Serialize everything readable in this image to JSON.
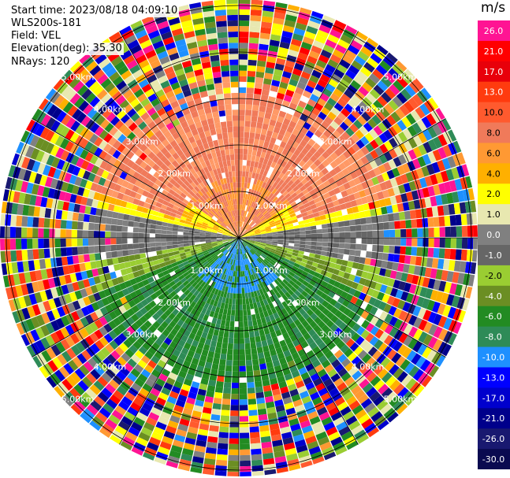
{
  "header": {
    "start_time": "Start time: 2023/08/18 04:09:10",
    "site": "WLS200s-181",
    "field": "Field: VEL",
    "elevation": "Elevation(deg): 35.30",
    "nrays": "NRays: 120"
  },
  "range_rings": {
    "labels": [
      "1.00km",
      "2.00km",
      "3.00km",
      "4.00km",
      "5.00km",
      "6.00km"
    ]
  },
  "colorbar": {
    "unit": "m/s",
    "ticks": [
      "26.0",
      "21.0",
      "17.0",
      "13.0",
      "10.0",
      "8.0",
      "6.0",
      "4.0",
      "2.0",
      "1.0",
      "0.0",
      "-1.0",
      "-2.0",
      "-4.0",
      "-6.0",
      "-8.0",
      "-10.0",
      "-13.0",
      "-17.0",
      "-21.0",
      "-26.0",
      "-30.0"
    ],
    "colors": [
      "#ff1493",
      "#ff0000",
      "#e8000a",
      "#ff3b0f",
      "#ff5a2e",
      "#f07a5a",
      "#ff9933",
      "#ffb000",
      "#ffff00",
      "#e8e8b0",
      "#808080",
      "#666666",
      "#9acd32",
      "#6b8e23",
      "#228b22",
      "#2e8b57",
      "#1e90ff",
      "#0000ff",
      "#0000cd",
      "#00008b",
      "#191970",
      "#0a0a50"
    ]
  }
}
